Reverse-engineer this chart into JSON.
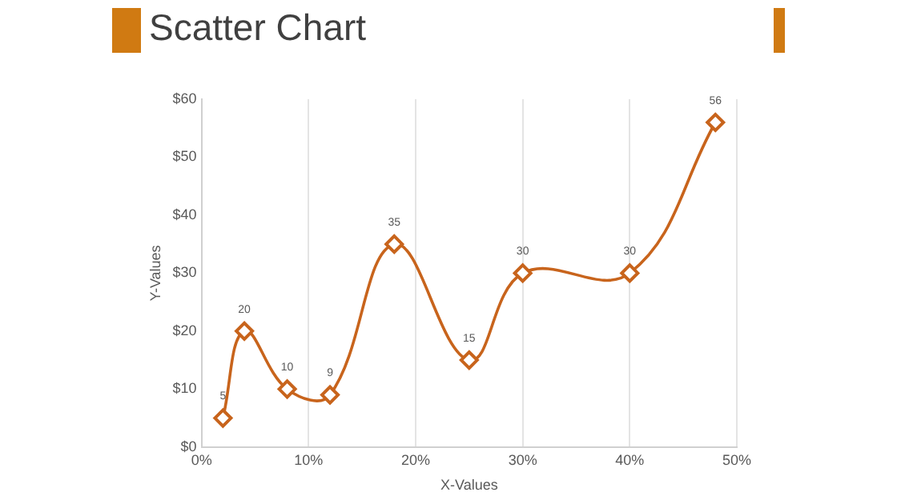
{
  "chart_data": {
    "type": "scatter",
    "title": "Scatter Chart",
    "xlabel": "X-Values",
    "ylabel": "Y-Values",
    "x": [
      2,
      4,
      8,
      12,
      18,
      25,
      30,
      40,
      48
    ],
    "series": [
      {
        "type": "line",
        "color": "#c8641c",
        "values": [
          5,
          20,
          10,
          9,
          35,
          15,
          30,
          30,
          56
        ]
      }
    ],
    "xlim": [
      0,
      50
    ],
    "xticks": [
      {
        "value": 0,
        "label": "0%"
      },
      {
        "value": 10,
        "label": "10%"
      },
      {
        "value": 20,
        "label": "20%"
      },
      {
        "value": 30,
        "label": "30%"
      },
      {
        "value": 40,
        "label": "40%"
      },
      {
        "value": 50,
        "label": "50%"
      }
    ],
    "ylim": [
      0,
      60
    ],
    "yticks": [
      {
        "value": 0,
        "label": "$0"
      },
      {
        "value": 10,
        "label": "$10"
      },
      {
        "value": 20,
        "label": "$20"
      },
      {
        "value": 30,
        "label": "$30"
      },
      {
        "value": 40,
        "label": "$40"
      },
      {
        "value": 50,
        "label": "$50"
      },
      {
        "value": 60,
        "label": "$60"
      }
    ],
    "grid": "x",
    "legend": false,
    "marker": "diamond",
    "line_style": "solid",
    "data_labels": true
  }
}
